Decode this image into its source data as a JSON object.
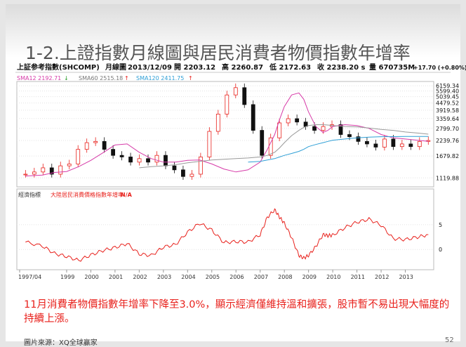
{
  "slide": {
    "title": "1-2.上證指數月線圖與居民消費者物價指數年增率",
    "caption": "11月消費者物價指數年增率下降至3.0%，顯示經濟僅維持溫和擴張，股市暫不易出現大幅度的持續上漲。",
    "source": "圖片來源：XQ全球贏家",
    "page_number": "52"
  },
  "quote_bar": {
    "symbol": "上証参考指數(SHCOMP)",
    "period": "月線圖",
    "date": "2013/12/09",
    "open": "開 2203.12",
    "high": "高 2260.87",
    "low": "低 2172.63",
    "close": "收 2238.20 s",
    "volume": "量 670735M",
    "change": "+17.70 (+0.80%)"
  },
  "indicators": {
    "sma12": "SMA12 2192.71",
    "sma60": "SMA60 2515.18",
    "sma120": "SMA120 2411.75",
    "lower_name": "經濟指標",
    "lower_series": "大陸居民消費價格指數年增率",
    "lower_value": "N/A"
  },
  "colors": {
    "sma12": "#d63aa8",
    "sma60": "#999999",
    "sma120": "#2e9fd6",
    "cpi": "#e8211c",
    "up": "#e8211c",
    "down": "#111111",
    "caption": "#e8211c"
  },
  "chart_data": [
    {
      "type": "line",
      "y_ticks": [
        "6159.34",
        "5599.40",
        "5039.45",
        "4479.52",
        "3919.58",
        "3359.64",
        "2799.70",
        "2239.76",
        "1679.82",
        "1119.88"
      ],
      "ylim": [
        1000,
        6500
      ],
      "log_scale": true,
      "x_ticks": [
        "1997/04",
        "1999",
        "2000",
        "2001",
        "2002",
        "2003",
        "2004",
        "2005",
        "2006",
        "2007",
        "2008",
        "2009",
        "2010",
        "2011",
        "2012",
        "2013"
      ],
      "x": [
        1997.3,
        1998,
        1998.5,
        1999,
        1999.5,
        2000,
        2000.5,
        2001,
        2001.5,
        2002,
        2002.5,
        2003,
        2003.5,
        2004,
        2004.5,
        2005,
        2005.5,
        2006,
        2006.5,
        2007,
        2007.3,
        2007.6,
        2007.8,
        2008,
        2008.3,
        2008.6,
        2008.8,
        2009,
        2009.3,
        2009.6,
        2009.8,
        2010,
        2010.5,
        2011,
        2011.5,
        2012,
        2012.5,
        2013,
        2013.5,
        2013.95
      ],
      "series": [
        {
          "name": "SMA12",
          "values": [
            1160,
            1180,
            1240,
            1260,
            1380,
            1550,
            1780,
            2060,
            2100,
            1800,
            1600,
            1500,
            1500,
            1550,
            1560,
            1450,
            1320,
            1250,
            1300,
            1500,
            1900,
            2500,
            3300,
            4200,
            5200,
            5400,
            4800,
            3800,
            2900,
            2600,
            2700,
            2900,
            3000,
            2950,
            2800,
            2500,
            2350,
            2300,
            2250,
            2200
          ]
        },
        {
          "name": "SMA60",
          "values": [
            null,
            null,
            null,
            null,
            null,
            null,
            null,
            null,
            null,
            1350,
            1380,
            1400,
            1430,
            1480,
            1520,
            1560,
            1580,
            1600,
            1620,
            1650,
            1700,
            1800,
            1950,
            2150,
            2450,
            2700,
            2850,
            2950,
            3000,
            3000,
            2980,
            2950,
            2900,
            2880,
            2820,
            2750,
            2700,
            2620,
            2570,
            2515
          ]
        },
        {
          "name": "SMA120",
          "values": [
            null,
            null,
            null,
            null,
            null,
            null,
            null,
            null,
            null,
            null,
            null,
            null,
            null,
            null,
            null,
            null,
            null,
            null,
            1500,
            1520,
            1560,
            1600,
            1650,
            1700,
            1760,
            1830,
            1900,
            2000,
            2080,
            2150,
            2200,
            2250,
            2300,
            2350,
            2380,
            2400,
            2405,
            2410,
            2412,
            2412
          ]
        }
      ],
      "candles_approx": [
        1200,
        1250,
        1350,
        1200,
        1400,
        1450,
        1900,
        2150,
        2200,
        1900,
        1700,
        1650,
        1500,
        1600,
        1500,
        1700,
        1400,
        1300,
        1150,
        1200,
        1650,
        2650,
        3650,
        5200,
        5950,
        4350,
        2700,
        1700,
        2350,
        3100,
        3350,
        3150,
        2900,
        2700,
        2900,
        3000,
        2500,
        2400,
        2200,
        2100,
        1980,
        2300,
        2000,
        2100,
        2000,
        2200,
        2238
      ]
    },
    {
      "type": "line",
      "y_ticks": [
        "5",
        "0"
      ],
      "series": [
        {
          "name": "大陸居民消費價格指數年增率",
          "values": [
            1.5,
            0.7,
            -0.8,
            -1.4,
            -2.2,
            -1.1,
            -0.2,
            0.4,
            1.2,
            -0.9,
            -1.2,
            0.5,
            1.0,
            3.5,
            5.3,
            3.9,
            1.4,
            1.6,
            1.5,
            3.0,
            6.5,
            8.0,
            6.5,
            5.3,
            2.4,
            -1.2,
            -1.7,
            -1.2,
            0.6,
            3.0,
            2.8,
            2.9,
            4.4,
            5.5,
            6.1,
            4.9,
            2.2,
            2.0,
            2.5,
            3.0
          ]
        }
      ]
    }
  ]
}
